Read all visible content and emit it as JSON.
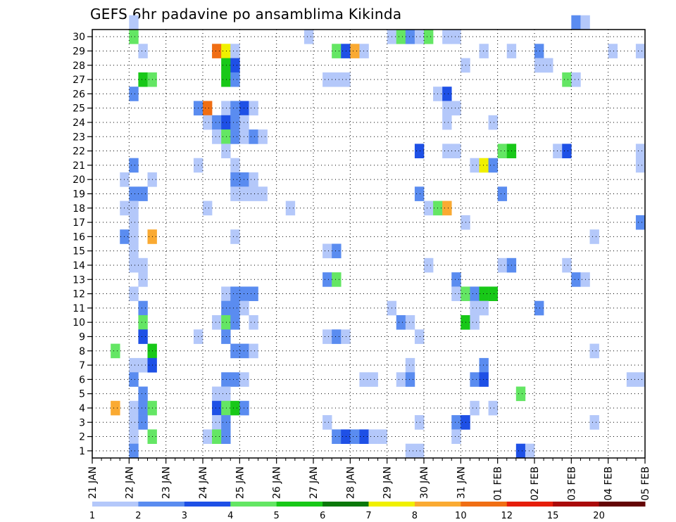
{
  "chart_data": {
    "type": "heatmap",
    "title": "GEFS 6hr padavine po ansamblima Kikinda",
    "xlabel": "",
    "ylabel": "",
    "x_start": "21 JAN 00Z",
    "x_end": "05 FEB 00Z",
    "x_step_hours": 6,
    "x_tick_labels": [
      "21 JAN",
      "22 JAN",
      "23 JAN",
      "24 JAN",
      "25 JAN",
      "26 JAN",
      "27 JAN",
      "28 JAN",
      "29 JAN",
      "30 JAN",
      "31 JAN",
      "01 FEB",
      "02 FEB",
      "03 FEB",
      "04 FEB",
      "05 FEB"
    ],
    "y_tick_labels": [
      "1",
      "2",
      "3",
      "4",
      "5",
      "6",
      "7",
      "8",
      "9",
      "10",
      "11",
      "12",
      "13",
      "14",
      "15",
      "16",
      "17",
      "18",
      "19",
      "20",
      "21",
      "22",
      "23",
      "24",
      "25",
      "26",
      "27",
      "28",
      "29",
      "30"
    ],
    "y_range": [
      0,
      30
    ],
    "grid": true,
    "color_levels": [
      1,
      2,
      3,
      4,
      5,
      6,
      7,
      8,
      10,
      12,
      15,
      20
    ],
    "color_scale": [
      "#b4c8fa",
      "#5a8cf0",
      "#1e50e6",
      "#64e664",
      "#18c818",
      "#0a780a",
      "#f0f000",
      "#faaa32",
      "#f06e14",
      "#e61e0a",
      "#aa0a0a",
      "#640505"
    ],
    "cells": [
      {
        "m": 30,
        "s": 4,
        "c": 0
      },
      {
        "m": 30,
        "s": 52,
        "c": 1
      },
      {
        "m": 30,
        "s": 53,
        "c": 0
      },
      {
        "m": 29,
        "s": 4,
        "c": 3
      },
      {
        "m": 29,
        "s": 23,
        "c": 0
      },
      {
        "m": 29,
        "s": 32,
        "c": 0
      },
      {
        "m": 29,
        "s": 33,
        "c": 3
      },
      {
        "m": 29,
        "s": 34,
        "c": 1
      },
      {
        "m": 29,
        "s": 35,
        "c": 0
      },
      {
        "m": 29,
        "s": 36,
        "c": 3
      },
      {
        "m": 29,
        "s": 38,
        "c": 0
      },
      {
        "m": 29,
        "s": 39,
        "c": 0
      },
      {
        "m": 28,
        "s": 5,
        "c": 0
      },
      {
        "m": 28,
        "s": 13,
        "c": 8
      },
      {
        "m": 28,
        "s": 14,
        "c": 6
      },
      {
        "m": 28,
        "s": 15,
        "c": 0
      },
      {
        "m": 28,
        "s": 26,
        "c": 3
      },
      {
        "m": 28,
        "s": 27,
        "c": 2
      },
      {
        "m": 28,
        "s": 28,
        "c": 7
      },
      {
        "m": 28,
        "s": 29,
        "c": 0
      },
      {
        "m": 28,
        "s": 42,
        "c": 0
      },
      {
        "m": 28,
        "s": 45,
        "c": 0
      },
      {
        "m": 28,
        "s": 48,
        "c": 1
      },
      {
        "m": 28,
        "s": 56,
        "c": 0
      },
      {
        "m": 28,
        "s": 59,
        "c": 0
      },
      {
        "m": 27,
        "s": 14,
        "c": 4
      },
      {
        "m": 27,
        "s": 15,
        "c": 2
      },
      {
        "m": 27,
        "s": 40,
        "c": 0
      },
      {
        "m": 27,
        "s": 48,
        "c": 0
      },
      {
        "m": 27,
        "s": 49,
        "c": 0
      },
      {
        "m": 26,
        "s": 5,
        "c": 4
      },
      {
        "m": 26,
        "s": 6,
        "c": 3
      },
      {
        "m": 26,
        "s": 14,
        "c": 4
      },
      {
        "m": 26,
        "s": 15,
        "c": 1
      },
      {
        "m": 26,
        "s": 25,
        "c": 0
      },
      {
        "m": 26,
        "s": 26,
        "c": 0
      },
      {
        "m": 26,
        "s": 27,
        "c": 0
      },
      {
        "m": 26,
        "s": 51,
        "c": 3
      },
      {
        "m": 26,
        "s": 52,
        "c": 0
      },
      {
        "m": 25,
        "s": 4,
        "c": 1
      },
      {
        "m": 25,
        "s": 37,
        "c": 0
      },
      {
        "m": 25,
        "s": 38,
        "c": 2
      },
      {
        "m": 24,
        "s": 11,
        "c": 1
      },
      {
        "m": 24,
        "s": 12,
        "c": 8
      },
      {
        "m": 24,
        "s": 14,
        "c": 0
      },
      {
        "m": 24,
        "s": 15,
        "c": 1
      },
      {
        "m": 24,
        "s": 16,
        "c": 2
      },
      {
        "m": 24,
        "s": 17,
        "c": 0
      },
      {
        "m": 24,
        "s": 38,
        "c": 0
      },
      {
        "m": 24,
        "s": 39,
        "c": 0
      },
      {
        "m": 23,
        "s": 12,
        "c": 0
      },
      {
        "m": 23,
        "s": 13,
        "c": 1
      },
      {
        "m": 23,
        "s": 14,
        "c": 2
      },
      {
        "m": 23,
        "s": 15,
        "c": 1
      },
      {
        "m": 23,
        "s": 16,
        "c": 0
      },
      {
        "m": 23,
        "s": 38,
        "c": 0
      },
      {
        "m": 23,
        "s": 43,
        "c": 0
      },
      {
        "m": 22,
        "s": 13,
        "c": 0
      },
      {
        "m": 22,
        "s": 14,
        "c": 3
      },
      {
        "m": 22,
        "s": 15,
        "c": 1
      },
      {
        "m": 22,
        "s": 16,
        "c": 0
      },
      {
        "m": 22,
        "s": 17,
        "c": 1
      },
      {
        "m": 22,
        "s": 18,
        "c": 0
      },
      {
        "m": 21,
        "s": 14,
        "c": 0
      },
      {
        "m": 21,
        "s": 35,
        "c": 2
      },
      {
        "m": 21,
        "s": 38,
        "c": 0
      },
      {
        "m": 21,
        "s": 39,
        "c": 0
      },
      {
        "m": 21,
        "s": 44,
        "c": 3
      },
      {
        "m": 21,
        "s": 45,
        "c": 4
      },
      {
        "m": 21,
        "s": 50,
        "c": 0
      },
      {
        "m": 21,
        "s": 51,
        "c": 2
      },
      {
        "m": 21,
        "s": 59,
        "c": 0
      },
      {
        "m": 20,
        "s": 4,
        "c": 1
      },
      {
        "m": 20,
        "s": 11,
        "c": 0
      },
      {
        "m": 20,
        "s": 15,
        "c": 0
      },
      {
        "m": 20,
        "s": 41,
        "c": 0
      },
      {
        "m": 20,
        "s": 42,
        "c": 6
      },
      {
        "m": 20,
        "s": 43,
        "c": 1
      },
      {
        "m": 20,
        "s": 59,
        "c": 0
      },
      {
        "m": 19,
        "s": 3,
        "c": 0
      },
      {
        "m": 19,
        "s": 6,
        "c": 0
      },
      {
        "m": 19,
        "s": 15,
        "c": 1
      },
      {
        "m": 19,
        "s": 16,
        "c": 1
      },
      {
        "m": 19,
        "s": 17,
        "c": 0
      },
      {
        "m": 18,
        "s": 4,
        "c": 1
      },
      {
        "m": 18,
        "s": 5,
        "c": 1
      },
      {
        "m": 18,
        "s": 15,
        "c": 0
      },
      {
        "m": 18,
        "s": 16,
        "c": 0
      },
      {
        "m": 18,
        "s": 17,
        "c": 0
      },
      {
        "m": 18,
        "s": 18,
        "c": 0
      },
      {
        "m": 18,
        "s": 35,
        "c": 1
      },
      {
        "m": 18,
        "s": 44,
        "c": 1
      },
      {
        "m": 17,
        "s": 3,
        "c": 0
      },
      {
        "m": 17,
        "s": 4,
        "c": 0
      },
      {
        "m": 17,
        "s": 12,
        "c": 0
      },
      {
        "m": 17,
        "s": 21,
        "c": 0
      },
      {
        "m": 17,
        "s": 36,
        "c": 0
      },
      {
        "m": 17,
        "s": 37,
        "c": 3
      },
      {
        "m": 17,
        "s": 38,
        "c": 7
      },
      {
        "m": 16,
        "s": 4,
        "c": 0
      },
      {
        "m": 16,
        "s": 40,
        "c": 0
      },
      {
        "m": 16,
        "s": 59,
        "c": 1
      },
      {
        "m": 15,
        "s": 3,
        "c": 1
      },
      {
        "m": 15,
        "s": 4,
        "c": 0
      },
      {
        "m": 15,
        "s": 6,
        "c": 7
      },
      {
        "m": 15,
        "s": 15,
        "c": 0
      },
      {
        "m": 15,
        "s": 54,
        "c": 0
      },
      {
        "m": 14,
        "s": 4,
        "c": 0
      },
      {
        "m": 14,
        "s": 25,
        "c": 0
      },
      {
        "m": 14,
        "s": 26,
        "c": 1
      },
      {
        "m": 13,
        "s": 4,
        "c": 0
      },
      {
        "m": 13,
        "s": 5,
        "c": 0
      },
      {
        "m": 13,
        "s": 36,
        "c": 0
      },
      {
        "m": 13,
        "s": 44,
        "c": 0
      },
      {
        "m": 13,
        "s": 45,
        "c": 1
      },
      {
        "m": 13,
        "s": 51,
        "c": 0
      },
      {
        "m": 12,
        "s": 5,
        "c": 0
      },
      {
        "m": 12,
        "s": 25,
        "c": 1
      },
      {
        "m": 12,
        "s": 26,
        "c": 3
      },
      {
        "m": 12,
        "s": 39,
        "c": 1
      },
      {
        "m": 12,
        "s": 52,
        "c": 1
      },
      {
        "m": 12,
        "s": 53,
        "c": 0
      },
      {
        "m": 11,
        "s": 4,
        "c": 0
      },
      {
        "m": 11,
        "s": 14,
        "c": 0
      },
      {
        "m": 11,
        "s": 15,
        "c": 1
      },
      {
        "m": 11,
        "s": 16,
        "c": 1
      },
      {
        "m": 11,
        "s": 17,
        "c": 1
      },
      {
        "m": 11,
        "s": 39,
        "c": 0
      },
      {
        "m": 11,
        "s": 40,
        "c": 3
      },
      {
        "m": 11,
        "s": 41,
        "c": 1
      },
      {
        "m": 11,
        "s": 42,
        "c": 4
      },
      {
        "m": 11,
        "s": 43,
        "c": 4
      },
      {
        "m": 10,
        "s": 5,
        "c": 1
      },
      {
        "m": 10,
        "s": 14,
        "c": 1
      },
      {
        "m": 10,
        "s": 15,
        "c": 1
      },
      {
        "m": 10,
        "s": 16,
        "c": 0
      },
      {
        "m": 10,
        "s": 32,
        "c": 0
      },
      {
        "m": 10,
        "s": 41,
        "c": 0
      },
      {
        "m": 10,
        "s": 42,
        "c": 0
      },
      {
        "m": 10,
        "s": 48,
        "c": 1
      },
      {
        "m": 9,
        "s": 5,
        "c": 3
      },
      {
        "m": 9,
        "s": 13,
        "c": 0
      },
      {
        "m": 9,
        "s": 14,
        "c": 3
      },
      {
        "m": 9,
        "s": 15,
        "c": 1
      },
      {
        "m": 9,
        "s": 17,
        "c": 0
      },
      {
        "m": 9,
        "s": 33,
        "c": 1
      },
      {
        "m": 9,
        "s": 34,
        "c": 0
      },
      {
        "m": 9,
        "s": 40,
        "c": 4
      },
      {
        "m": 9,
        "s": 41,
        "c": 0
      },
      {
        "m": 8,
        "s": 5,
        "c": 2
      },
      {
        "m": 8,
        "s": 11,
        "c": 0
      },
      {
        "m": 8,
        "s": 14,
        "c": 1
      },
      {
        "m": 8,
        "s": 25,
        "c": 0
      },
      {
        "m": 8,
        "s": 26,
        "c": 1
      },
      {
        "m": 8,
        "s": 27,
        "c": 0
      },
      {
        "m": 8,
        "s": 35,
        "c": 0
      },
      {
        "m": 7,
        "s": 2,
        "c": 3
      },
      {
        "m": 7,
        "s": 6,
        "c": 4
      },
      {
        "m": 7,
        "s": 15,
        "c": 1
      },
      {
        "m": 7,
        "s": 16,
        "c": 1
      },
      {
        "m": 7,
        "s": 17,
        "c": 0
      },
      {
        "m": 7,
        "s": 54,
        "c": 0
      },
      {
        "m": 6,
        "s": 4,
        "c": 0
      },
      {
        "m": 6,
        "s": 5,
        "c": 0
      },
      {
        "m": 6,
        "s": 6,
        "c": 2
      },
      {
        "m": 6,
        "s": 34,
        "c": 0
      },
      {
        "m": 6,
        "s": 42,
        "c": 1
      },
      {
        "m": 5,
        "s": 4,
        "c": 1
      },
      {
        "m": 5,
        "s": 14,
        "c": 1
      },
      {
        "m": 5,
        "s": 15,
        "c": 1
      },
      {
        "m": 5,
        "s": 16,
        "c": 0
      },
      {
        "m": 5,
        "s": 29,
        "c": 0
      },
      {
        "m": 5,
        "s": 30,
        "c": 0
      },
      {
        "m": 5,
        "s": 33,
        "c": 0
      },
      {
        "m": 5,
        "s": 34,
        "c": 1
      },
      {
        "m": 5,
        "s": 41,
        "c": 1
      },
      {
        "m": 5,
        "s": 42,
        "c": 2
      },
      {
        "m": 5,
        "s": 58,
        "c": 0
      },
      {
        "m": 5,
        "s": 59,
        "c": 0
      },
      {
        "m": 4,
        "s": 5,
        "c": 1
      },
      {
        "m": 4,
        "s": 13,
        "c": 0
      },
      {
        "m": 4,
        "s": 14,
        "c": 0
      },
      {
        "m": 4,
        "s": 46,
        "c": 3
      },
      {
        "m": 3,
        "s": 2,
        "c": 7
      },
      {
        "m": 3,
        "s": 4,
        "c": 0
      },
      {
        "m": 3,
        "s": 5,
        "c": 1
      },
      {
        "m": 3,
        "s": 6,
        "c": 3
      },
      {
        "m": 3,
        "s": 13,
        "c": 2
      },
      {
        "m": 3,
        "s": 14,
        "c": 3
      },
      {
        "m": 3,
        "s": 15,
        "c": 4
      },
      {
        "m": 3,
        "s": 16,
        "c": 1
      },
      {
        "m": 3,
        "s": 41,
        "c": 0
      },
      {
        "m": 3,
        "s": 43,
        "c": 0
      },
      {
        "m": 2,
        "s": 4,
        "c": 0
      },
      {
        "m": 2,
        "s": 5,
        "c": 1
      },
      {
        "m": 2,
        "s": 13,
        "c": 0
      },
      {
        "m": 2,
        "s": 14,
        "c": 1
      },
      {
        "m": 2,
        "s": 25,
        "c": 0
      },
      {
        "m": 2,
        "s": 35,
        "c": 0
      },
      {
        "m": 2,
        "s": 39,
        "c": 1
      },
      {
        "m": 2,
        "s": 40,
        "c": 2
      },
      {
        "m": 2,
        "s": 54,
        "c": 0
      },
      {
        "m": 1,
        "s": 4,
        "c": 0
      },
      {
        "m": 1,
        "s": 6,
        "c": 3
      },
      {
        "m": 1,
        "s": 12,
        "c": 0
      },
      {
        "m": 1,
        "s": 13,
        "c": 3
      },
      {
        "m": 1,
        "s": 14,
        "c": 1
      },
      {
        "m": 1,
        "s": 26,
        "c": 1
      },
      {
        "m": 1,
        "s": 27,
        "c": 2
      },
      {
        "m": 1,
        "s": 28,
        "c": 1
      },
      {
        "m": 1,
        "s": 29,
        "c": 2
      },
      {
        "m": 1,
        "s": 30,
        "c": 0
      },
      {
        "m": 1,
        "s": 31,
        "c": 0
      },
      {
        "m": 1,
        "s": 39,
        "c": 0
      },
      {
        "m": 0,
        "s": 4,
        "c": 1
      },
      {
        "m": 0,
        "s": 34,
        "c": 0
      },
      {
        "m": 0,
        "s": 35,
        "c": 0
      },
      {
        "m": 0,
        "s": 46,
        "c": 2
      },
      {
        "m": 0,
        "s": 47,
        "c": 0
      }
    ]
  }
}
